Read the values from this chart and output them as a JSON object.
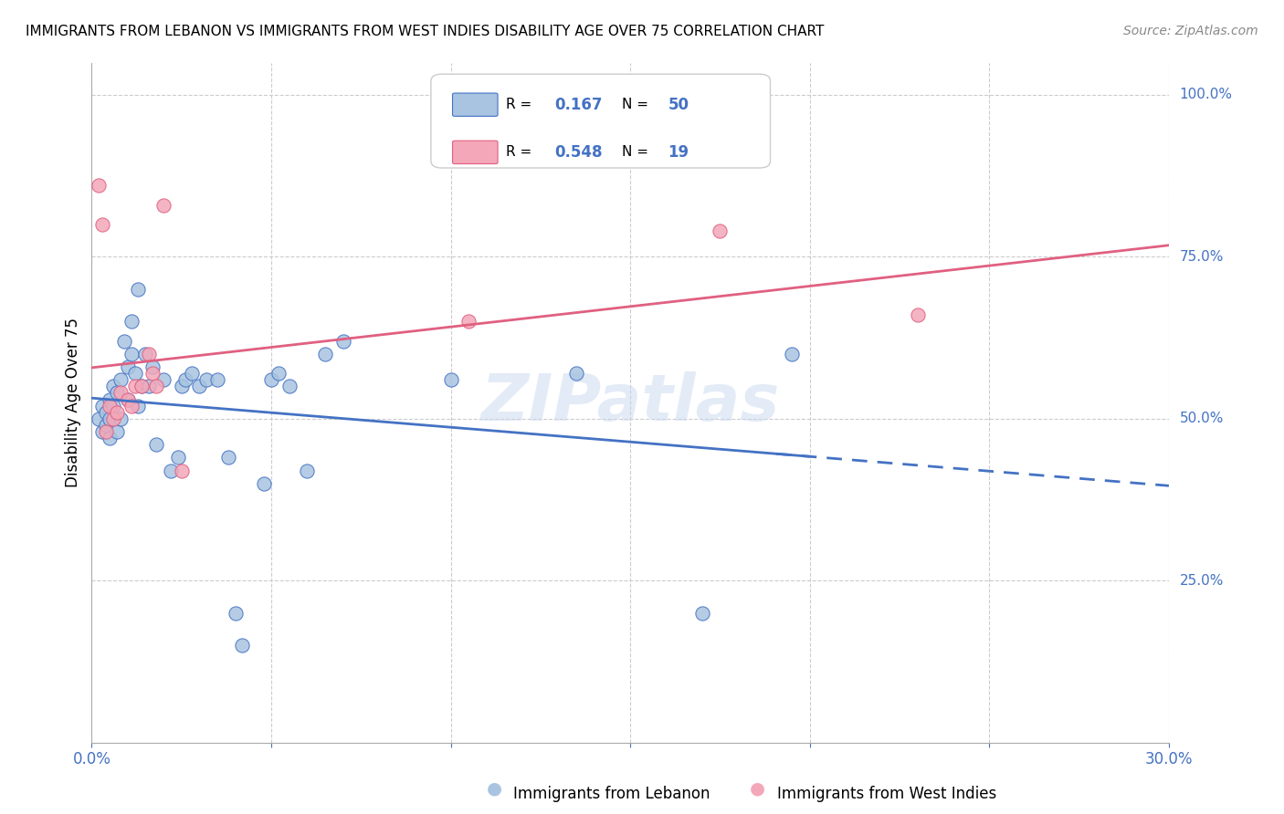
{
  "title": "IMMIGRANTS FROM LEBANON VS IMMIGRANTS FROM WEST INDIES DISABILITY AGE OVER 75 CORRELATION CHART",
  "source": "Source: ZipAtlas.com",
  "xlabel_lebanon": "Immigrants from Lebanon",
  "xlabel_west_indies": "Immigrants from West Indies",
  "ylabel": "Disability Age Over 75",
  "xlim": [
    0.0,
    0.3
  ],
  "ylim": [
    0.0,
    1.05
  ],
  "R_lebanon": 0.167,
  "N_lebanon": 50,
  "R_west_indies": 0.548,
  "N_west_indies": 19,
  "color_lebanon": "#a8c4e0",
  "color_west_indies": "#f4a7b9",
  "line_color_lebanon": "#4472c4",
  "line_color_west_indies": "#e06080",
  "watermark": "ZIPatlas",
  "lebanon_x": [
    0.002,
    0.003,
    0.003,
    0.004,
    0.004,
    0.005,
    0.005,
    0.005,
    0.006,
    0.006,
    0.007,
    0.007,
    0.008,
    0.008,
    0.009,
    0.01,
    0.01,
    0.011,
    0.011,
    0.012,
    0.013,
    0.013,
    0.014,
    0.015,
    0.016,
    0.017,
    0.018,
    0.02,
    0.022,
    0.024,
    0.025,
    0.026,
    0.028,
    0.03,
    0.032,
    0.035,
    0.038,
    0.04,
    0.042,
    0.048,
    0.05,
    0.052,
    0.055,
    0.06,
    0.065,
    0.07,
    0.1,
    0.135,
    0.17,
    0.195
  ],
  "lebanon_y": [
    0.5,
    0.52,
    0.48,
    0.51,
    0.49,
    0.53,
    0.5,
    0.47,
    0.55,
    0.52,
    0.54,
    0.48,
    0.56,
    0.5,
    0.62,
    0.58,
    0.53,
    0.65,
    0.6,
    0.57,
    0.7,
    0.52,
    0.55,
    0.6,
    0.55,
    0.58,
    0.46,
    0.56,
    0.42,
    0.44,
    0.55,
    0.56,
    0.57,
    0.55,
    0.56,
    0.56,
    0.44,
    0.2,
    0.15,
    0.4,
    0.56,
    0.57,
    0.55,
    0.42,
    0.6,
    0.62,
    0.56,
    0.57,
    0.2,
    0.6
  ],
  "west_indies_x": [
    0.002,
    0.003,
    0.004,
    0.005,
    0.006,
    0.007,
    0.008,
    0.01,
    0.011,
    0.012,
    0.014,
    0.016,
    0.017,
    0.018,
    0.02,
    0.025,
    0.105,
    0.175,
    0.23
  ],
  "west_indies_y": [
    0.86,
    0.8,
    0.48,
    0.52,
    0.5,
    0.51,
    0.54,
    0.53,
    0.52,
    0.55,
    0.55,
    0.6,
    0.57,
    0.55,
    0.83,
    0.42,
    0.65,
    0.79,
    0.66
  ]
}
